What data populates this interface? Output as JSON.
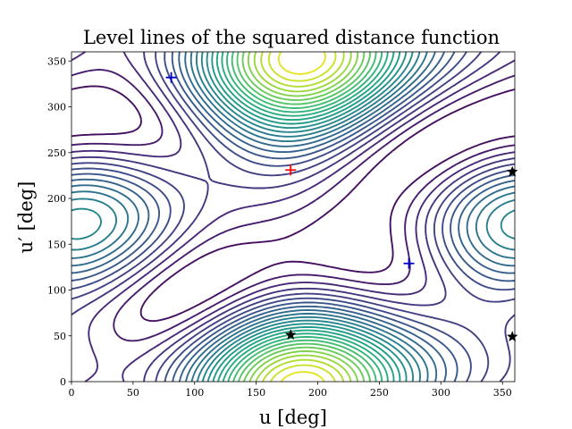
{
  "chart_data": {
    "type": "contour",
    "title": "Level lines of the squared distance function",
    "xlabel": "u [deg]",
    "ylabel": "u′ [deg]",
    "xlim": [
      0,
      360
    ],
    "ylim": [
      0,
      360
    ],
    "xticks": [
      0,
      50,
      100,
      150,
      200,
      250,
      300,
      350
    ],
    "yticks": [
      0,
      50,
      100,
      150,
      200,
      250,
      300,
      350
    ],
    "colormap": "viridis",
    "grid": false,
    "legend": "none",
    "function": {
      "description": "squared distance between two points on ellipses parameterised by u and u′",
      "a1": 1.0,
      "b1": 0.35,
      "a2": 1.2,
      "b2": 0.5,
      "rot2_deg": 35,
      "offset": [
        0.35,
        0.15
      ],
      "levels": 26
    },
    "markers": [
      {
        "kind": "maximum",
        "symbol": "plus",
        "color": "#ff0000",
        "u": 178,
        "u_prime": 231
      },
      {
        "kind": "saddle",
        "symbol": "plus",
        "color": "#0000cc",
        "u": 81,
        "u_prime": 332
      },
      {
        "kind": "saddle",
        "symbol": "plus",
        "color": "#0000cc",
        "u": 274,
        "u_prime": 129
      },
      {
        "kind": "minimum",
        "symbol": "star",
        "color": "#000000",
        "u": 178,
        "u_prime": 51
      },
      {
        "kind": "minimum",
        "symbol": "star",
        "color": "#000000",
        "u": 358,
        "u_prime": 229
      },
      {
        "kind": "minimum",
        "symbol": "star",
        "color": "#000000",
        "u": 358,
        "u_prime": 49
      }
    ]
  }
}
